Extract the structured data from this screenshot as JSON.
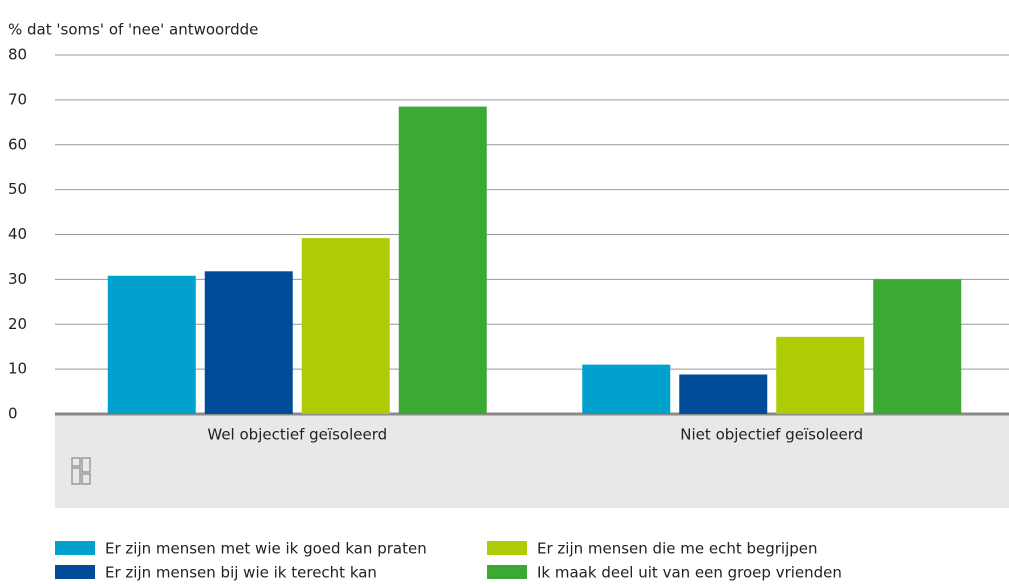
{
  "chart_data": {
    "type": "bar",
    "y_axis_label": "% dat 'soms' of 'nee' antwoordde",
    "categories": [
      "Wel objectief geïsoleerd",
      "Niet objectief geïsoleerd"
    ],
    "series": [
      {
        "name": "Er zijn mensen met wie ik goed kan praten",
        "color": "#00a1cd",
        "values": [
          30.8,
          11
        ]
      },
      {
        "name": "Er zijn mensen bij wie ik terecht kan",
        "color": "#004c99",
        "values": [
          31.8,
          8.8
        ]
      },
      {
        "name": "Er zijn mensen die me echt begrijpen",
        "color": "#afcb05",
        "values": [
          39.2,
          17.2
        ]
      },
      {
        "name": "Ik maak deel uit van een groep vrienden",
        "color": "#3aaa35",
        "values": [
          68.5,
          30
        ]
      }
    ],
    "ylim": [
      0,
      80
    ],
    "yticks": [
      0,
      10,
      20,
      30,
      40,
      50,
      60,
      70,
      80
    ],
    "grid": true
  }
}
